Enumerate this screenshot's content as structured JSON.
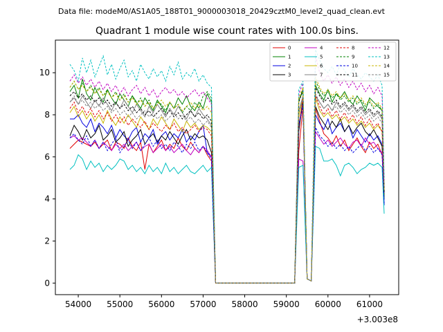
{
  "figure": {
    "suptitle": "Data file: modeM0/AS1A05_188T01_9000003018_20429cztM0_level2_quad_clean.evt",
    "title": "Quadrant 1 module wise count rates with 100.0s bins.",
    "x_offset_label": "+3.003e8"
  },
  "chart_data": {
    "type": "line",
    "title": "Quadrant 1 module wise count rates with 100.0s bins.",
    "xlabel": "",
    "ylabel": "",
    "x_offset": 300300000,
    "xlim": [
      53450,
      61700
    ],
    "ylim": [
      -0.55,
      11.55
    ],
    "xticks": [
      54000,
      55000,
      56000,
      57000,
      58000,
      59000,
      60000,
      61000
    ],
    "xtick_labels": [
      "54000",
      "55000",
      "56000",
      "57000",
      "58000",
      "59000",
      "60000",
      "61000"
    ],
    "yticks": [
      0,
      2,
      4,
      6,
      8,
      10
    ],
    "ytick_labels": [
      "0",
      "2",
      "4",
      "6",
      "8",
      "10"
    ],
    "grid": false,
    "legend_position": "top-right",
    "legend_ncol": 4,
    "x": [
      53800,
      53900,
      54000,
      54100,
      54200,
      54300,
      54400,
      54500,
      54600,
      54700,
      54800,
      54900,
      55000,
      55100,
      55200,
      55300,
      55400,
      55500,
      55600,
      55700,
      55800,
      55900,
      56000,
      56100,
      56200,
      56300,
      56400,
      56500,
      56600,
      56700,
      56800,
      56900,
      57000,
      57100,
      57200,
      57300,
      57400,
      59200,
      59300,
      59400,
      59500,
      59600,
      59700,
      59800,
      59900,
      60000,
      60100,
      60200,
      60300,
      60400,
      60500,
      60600,
      60700,
      60800,
      60900,
      61000,
      61100,
      61200,
      61300,
      61350
    ],
    "series": [
      {
        "name": "0",
        "color": "#e00000",
        "dash": "solid",
        "values": [
          6.4,
          6.6,
          6.8,
          6.7,
          6.6,
          6.5,
          6.7,
          6.4,
          6.6,
          6.8,
          6.3,
          6.7,
          6.6,
          6.4,
          6.9,
          6.5,
          6.3,
          6.7,
          5.4,
          6.6,
          6.2,
          6.5,
          6.8,
          6.3,
          6.6,
          6.4,
          6.9,
          6.5,
          6.3,
          6.7,
          6.4,
          6.2,
          6.5,
          6.1,
          5.8,
          0,
          0,
          0,
          6.3,
          8.4,
          0.2,
          0.1,
          8.3,
          7.7,
          7.1,
          6.9,
          6.6,
          7.0,
          6.5,
          6.8,
          6.3,
          6.6,
          6.9,
          6.5,
          6.2,
          6.7,
          6.4,
          6.6,
          6.1,
          4.1
        ]
      },
      {
        "name": "1",
        "color": "#008000",
        "dash": "solid",
        "values": [
          9.1,
          9.4,
          8.8,
          9.7,
          9.0,
          8.7,
          9.3,
          8.9,
          8.6,
          9.2,
          8.8,
          8.5,
          9.0,
          8.7,
          8.4,
          8.9,
          8.6,
          8.3,
          8.8,
          8.5,
          8.2,
          8.7,
          8.4,
          8.1,
          8.6,
          8.3,
          8.8,
          8.5,
          8.9,
          8.4,
          8.2,
          8.6,
          8.3,
          9.0,
          8.6,
          0,
          0,
          0,
          8.7,
          9.1,
          0.2,
          0.1,
          9.4,
          9.0,
          8.7,
          9.2,
          8.6,
          9.0,
          8.8,
          9.1,
          8.7,
          8.5,
          8.9,
          8.6,
          8.2,
          8.8,
          8.6,
          8.4,
          8.2,
          4.0
        ]
      },
      {
        "name": "2",
        "color": "#0000e0",
        "dash": "solid",
        "values": [
          7.8,
          7.8,
          8.0,
          7.6,
          7.4,
          7.8,
          7.2,
          7.6,
          7.4,
          7.1,
          7.5,
          6.9,
          7.3,
          7.0,
          6.8,
          7.2,
          7.4,
          6.7,
          7.1,
          6.9,
          7.3,
          6.6,
          7.0,
          7.2,
          6.8,
          7.1,
          6.9,
          7.3,
          6.7,
          7.0,
          6.8,
          7.2,
          7.5,
          6.2,
          6.0,
          0,
          0,
          0,
          7.5,
          8.6,
          0.2,
          0.1,
          8.0,
          7.6,
          7.3,
          7.8,
          7.1,
          7.4,
          7.6,
          7.2,
          7.5,
          6.9,
          7.3,
          7.0,
          6.7,
          7.1,
          6.8,
          7.0,
          6.6,
          3.7
        ]
      },
      {
        "name": "3",
        "color": "#000000",
        "dash": "solid",
        "values": [
          7.0,
          7.5,
          7.2,
          6.8,
          7.3,
          6.9,
          7.1,
          7.5,
          6.8,
          7.0,
          7.3,
          6.7,
          6.9,
          7.2,
          6.5,
          6.8,
          7.0,
          7.3,
          6.6,
          6.9,
          7.1,
          6.7,
          7.0,
          6.8,
          7.2,
          6.9,
          6.6,
          7.0,
          7.3,
          6.8,
          7.1,
          6.9,
          7.0,
          6.8,
          6.2,
          0,
          0,
          0,
          7.2,
          8.8,
          0.2,
          0.1,
          8.4,
          7.9,
          7.6,
          7.3,
          7.7,
          7.4,
          7.8,
          7.2,
          7.5,
          7.1,
          7.4,
          7.6,
          7.2,
          7.0,
          7.3,
          6.9,
          6.5,
          4.5
        ]
      },
      {
        "name": "4",
        "color": "#c000c0",
        "dash": "solid",
        "values": [
          6.9,
          7.0,
          6.8,
          6.9,
          6.7,
          6.5,
          6.8,
          6.4,
          6.7,
          6.5,
          6.3,
          6.6,
          6.4,
          6.6,
          6.3,
          6.5,
          6.7,
          6.3,
          6.5,
          6.6,
          6.2,
          6.4,
          6.6,
          6.3,
          6.5,
          6.2,
          6.4,
          6.6,
          6.3,
          6.1,
          6.4,
          6.2,
          6.5,
          6.3,
          6.0,
          0,
          0,
          0,
          5.9,
          5.8,
          0.2,
          0.1,
          7.2,
          6.9,
          6.6,
          6.8,
          6.5,
          6.7,
          6.9,
          6.6,
          6.4,
          6.7,
          6.8,
          6.5,
          6.9,
          6.6,
          6.7,
          6.4,
          6.2,
          4.3
        ]
      },
      {
        "name": "5",
        "color": "#00c0c0",
        "dash": "solid",
        "values": [
          5.4,
          5.6,
          6.1,
          5.9,
          5.4,
          5.8,
          5.5,
          5.7,
          5.3,
          5.6,
          5.4,
          5.6,
          5.9,
          5.8,
          5.4,
          5.6,
          5.3,
          5.5,
          5.2,
          5.6,
          5.3,
          5.5,
          5.2,
          5.7,
          5.3,
          5.5,
          5.2,
          5.4,
          5.6,
          5.3,
          5.2,
          5.4,
          5.6,
          5.3,
          5.5,
          0,
          0,
          0,
          5.5,
          5.6,
          0.2,
          0.1,
          6.5,
          6.4,
          5.8,
          5.8,
          5.9,
          5.6,
          5.1,
          5.6,
          5.7,
          5.5,
          5.2,
          5.4,
          5.5,
          5.7,
          5.6,
          5.7,
          5.5,
          3.3
        ]
      },
      {
        "name": "6",
        "color": "#c8b400",
        "dash": "solid",
        "values": [
          8.1,
          8.4,
          7.9,
          8.2,
          7.8,
          8.1,
          7.7,
          8.0,
          7.6,
          8.2,
          7.8,
          7.5,
          7.9,
          7.6,
          8.0,
          7.7,
          7.4,
          7.9,
          7.6,
          7.3,
          7.8,
          7.5,
          7.9,
          7.6,
          7.3,
          7.8,
          7.5,
          7.2,
          7.7,
          7.4,
          7.6,
          7.3,
          7.5,
          7.4,
          7.2,
          0,
          0,
          0,
          7.9,
          8.9,
          0.2,
          0.1,
          8.8,
          8.2,
          7.9,
          8.1,
          7.8,
          8.0,
          7.7,
          7.9,
          7.6,
          7.8,
          7.5,
          7.7,
          7.4,
          7.6,
          7.3,
          7.5,
          7.2,
          4.4
        ]
      },
      {
        "name": "7",
        "color": "#808080",
        "dash": "solid",
        "values": [
          8.6,
          8.8,
          8.5,
          8.9,
          8.6,
          8.3,
          8.7,
          8.4,
          8.8,
          8.5,
          8.2,
          8.6,
          8.3,
          8.7,
          8.4,
          8.1,
          8.5,
          8.2,
          7.9,
          8.4,
          8.1,
          8.5,
          8.2,
          7.9,
          8.3,
          8.0,
          8.4,
          8.1,
          7.8,
          8.2,
          7.9,
          8.3,
          8.0,
          7.8,
          7.5,
          0,
          0,
          0,
          8.2,
          8.9,
          0.2,
          0.1,
          8.9,
          8.6,
          8.3,
          8.5,
          8.2,
          8.6,
          8.3,
          8.5,
          8.2,
          8.4,
          8.1,
          8.3,
          8.0,
          8.2,
          7.9,
          8.1,
          7.8,
          4.6
        ]
      },
      {
        "name": "8",
        "color": "#e00000",
        "dash": "dashed",
        "values": [
          8.3,
          8.6,
          8.1,
          8.4,
          8.0,
          8.3,
          7.9,
          8.2,
          7.8,
          8.1,
          7.7,
          8.0,
          7.6,
          7.9,
          7.5,
          7.8,
          7.6,
          7.4,
          7.7,
          7.3,
          7.6,
          7.4,
          7.2,
          7.5,
          7.3,
          7.6,
          7.2,
          7.4,
          7.1,
          7.3,
          7.5,
          7.2,
          7.4,
          7.3,
          7.0,
          0,
          0,
          0,
          7.4,
          8.8,
          0.2,
          0.1,
          8.9,
          8.4,
          8.0,
          8.3,
          7.9,
          8.2,
          7.8,
          8.1,
          7.7,
          8.0,
          7.6,
          7.9,
          7.5,
          7.8,
          7.4,
          7.6,
          7.2,
          4.5
        ]
      },
      {
        "name": "9",
        "color": "#008000",
        "dash": "dashed",
        "values": [
          9.3,
          9.6,
          9.2,
          9.5,
          9.1,
          9.4,
          9.0,
          9.3,
          8.9,
          9.2,
          8.8,
          9.1,
          8.7,
          9.0,
          8.6,
          8.9,
          8.5,
          8.8,
          8.4,
          8.7,
          8.3,
          8.6,
          8.5,
          8.2,
          8.6,
          8.3,
          8.5,
          8.1,
          8.4,
          8.2,
          8.6,
          8.3,
          8.9,
          9.1,
          8.8,
          0,
          0,
          0,
          8.8,
          9.2,
          0.2,
          0.1,
          9.6,
          9.2,
          8.9,
          9.1,
          8.8,
          9.0,
          8.7,
          8.9,
          8.6,
          8.8,
          8.5,
          8.7,
          8.4,
          8.6,
          8.3,
          8.5,
          8.2,
          4.2
        ]
      },
      {
        "name": "10",
        "color": "#0000e0",
        "dash": "dashed",
        "values": [
          6.9,
          7.1,
          6.8,
          6.6,
          7.0,
          6.5,
          6.8,
          6.4,
          6.7,
          6.3,
          6.6,
          6.9,
          6.2,
          6.5,
          6.8,
          6.4,
          6.7,
          6.3,
          6.6,
          6.9,
          6.5,
          6.8,
          6.4,
          6.6,
          6.3,
          6.7,
          6.5,
          6.2,
          6.6,
          6.4,
          6.7,
          6.3,
          6.5,
          6.2,
          5.9,
          0,
          0,
          0,
          7.5,
          8.4,
          0.2,
          0.1,
          7.4,
          7.0,
          6.8,
          6.5,
          6.7,
          6.4,
          6.6,
          6.3,
          6.5,
          6.2,
          6.4,
          6.6,
          6.3,
          6.5,
          6.2,
          6.4,
          6.1,
          3.8
        ]
      },
      {
        "name": "11",
        "color": "#000000",
        "dash": "dashed",
        "values": [
          8.9,
          9.1,
          8.8,
          9.0,
          8.7,
          8.9,
          8.6,
          8.8,
          8.5,
          8.7,
          8.4,
          8.6,
          8.3,
          8.5,
          8.2,
          8.4,
          8.1,
          8.3,
          8.0,
          8.2,
          7.9,
          8.1,
          8.3,
          8.0,
          8.2,
          7.9,
          8.1,
          7.8,
          8.0,
          8.2,
          7.9,
          8.1,
          7.8,
          8.0,
          7.7,
          0,
          0,
          0,
          8.6,
          9.2,
          0.2,
          0.1,
          9.3,
          8.9,
          8.6,
          8.8,
          8.5,
          8.7,
          8.4,
          8.6,
          8.3,
          8.5,
          8.2,
          8.4,
          8.1,
          8.3,
          8.0,
          8.2,
          7.9,
          4.3
        ]
      },
      {
        "name": "12",
        "color": "#c000c0",
        "dash": "dashed",
        "values": [
          9.6,
          9.9,
          9.5,
          9.8,
          9.4,
          9.7,
          9.3,
          9.6,
          9.2,
          9.5,
          9.1,
          9.4,
          9.0,
          9.3,
          8.9,
          9.2,
          9.4,
          9.0,
          9.3,
          8.9,
          9.2,
          8.8,
          9.1,
          9.3,
          9.0,
          9.2,
          8.9,
          9.1,
          8.8,
          9.0,
          9.2,
          8.9,
          9.1,
          8.8,
          8.5,
          0,
          0,
          0,
          9.0,
          9.5,
          0.2,
          0.1,
          10.8,
          10.0,
          9.6,
          9.9,
          9.5,
          9.8,
          9.4,
          9.7,
          9.3,
          9.6,
          9.2,
          9.5,
          9.1,
          9.4,
          9.0,
          9.3,
          8.9,
          4.9
        ]
      },
      {
        "name": "13",
        "color": "#00c0c0",
        "dash": "dashed",
        "values": [
          10.4,
          10.1,
          9.6,
          10.7,
          10.0,
          10.6,
          9.8,
          10.3,
          10.8,
          9.9,
          10.4,
          9.7,
          10.2,
          10.6,
          9.8,
          10.1,
          9.6,
          10.4,
          10.0,
          9.7,
          10.2,
          9.8,
          10.1,
          9.6,
          10.3,
          9.9,
          10.5,
          9.7,
          10.0,
          9.8,
          10.2,
          9.6,
          9.9,
          9.5,
          9.3,
          0,
          0,
          0,
          9.2,
          9.6,
          0.2,
          0.1,
          11.1,
          10.6,
          10.2,
          10.0,
          10.3,
          9.9,
          10.4,
          10.1,
          9.8,
          10.2,
          9.9,
          9.7,
          10.0,
          9.8,
          9.6,
          9.9,
          9.4,
          5.0
        ]
      },
      {
        "name": "14",
        "color": "#c8b400",
        "dash": "dashed",
        "values": [
          9.3,
          9.6,
          9.2,
          9.4,
          9.1,
          9.3,
          9.0,
          9.2,
          8.9,
          9.1,
          8.8,
          9.0,
          8.7,
          8.9,
          8.6,
          8.8,
          8.5,
          8.7,
          8.4,
          8.6,
          8.3,
          8.5,
          8.7,
          8.4,
          8.6,
          8.3,
          8.5,
          8.2,
          8.4,
          8.6,
          8.3,
          8.5,
          8.2,
          8.4,
          8.1,
          0,
          0,
          0,
          8.8,
          9.3,
          0.2,
          0.1,
          9.8,
          9.3,
          9.0,
          9.2,
          8.9,
          9.1,
          8.8,
          9.0,
          8.7,
          8.9,
          8.6,
          8.8,
          8.5,
          8.7,
          8.4,
          8.6,
          8.3,
          4.4
        ]
      },
      {
        "name": "15",
        "color": "#808080",
        "dash": "dashed",
        "values": [
          8.6,
          8.9,
          8.5,
          8.7,
          8.4,
          8.6,
          8.3,
          8.5,
          8.2,
          8.4,
          8.1,
          8.3,
          8.0,
          8.2,
          7.9,
          8.1,
          7.8,
          8.0,
          8.2,
          7.9,
          8.1,
          7.8,
          8.0,
          7.7,
          7.9,
          8.1,
          7.8,
          8.0,
          7.7,
          7.9,
          7.6,
          7.8,
          7.5,
          7.7,
          7.4,
          0,
          0,
          0,
          8.1,
          8.8,
          0.2,
          0.1,
          9.0,
          8.6,
          8.3,
          8.5,
          8.2,
          8.4,
          8.1,
          8.3,
          8.0,
          8.2,
          7.9,
          8.1,
          7.8,
          8.0,
          7.7,
          7.9,
          7.6,
          4.5
        ]
      }
    ]
  }
}
